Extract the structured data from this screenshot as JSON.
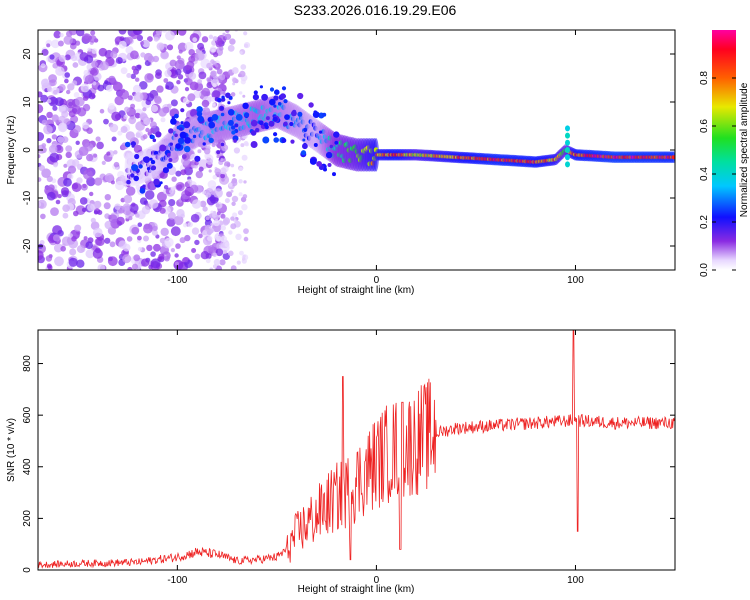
{
  "title": "S233.2026.016.19.29.E06",
  "chart_data": [
    {
      "type": "heatmap",
      "title": "S233.2026.016.19.29.E06",
      "xlabel": "Height of straight line (km)",
      "ylabel": "Frequency (Hz)",
      "xlim": [
        -170,
        150
      ],
      "ylim": [
        -25,
        25
      ],
      "xticks": [
        -100,
        0,
        100
      ],
      "yticks": [
        -20,
        -10,
        0,
        10,
        20
      ],
      "colorbar": {
        "label": "Normalized spectral amplitude",
        "range": [
          0,
          1
        ],
        "ticks": [
          0.0,
          0.2,
          0.4,
          0.6,
          0.8
        ]
      },
      "ridge": {
        "x": [
          -120,
          -110,
          -100,
          -90,
          -80,
          -70,
          -60,
          -50,
          -40,
          -30,
          -20,
          -10,
          0,
          10,
          20,
          40,
          60,
          80,
          90,
          95,
          100,
          120,
          150
        ],
        "freq": [
          -4,
          -2,
          2,
          4,
          5,
          6,
          7,
          8,
          6,
          3,
          0,
          -1,
          -1,
          -1,
          -1,
          -1.5,
          -2,
          -2.5,
          -2,
          0,
          -1,
          -1.5,
          -1.5
        ],
        "amplitude": [
          0.15,
          0.2,
          0.3,
          0.3,
          0.35,
          0.35,
          0.4,
          0.35,
          0.3,
          0.25,
          0.5,
          0.6,
          0.8,
          0.9,
          0.7,
          0.85,
          0.95,
          0.9,
          0.8,
          0.6,
          0.9,
          1.0,
          0.95
        ]
      }
    },
    {
      "type": "line",
      "xlabel": "Height of straight line (km)",
      "ylabel": "SNR (10 * v/v)",
      "xlim": [
        -170,
        150
      ],
      "ylim": [
        0,
        930
      ],
      "xticks": [
        -100,
        0,
        100
      ],
      "yticks": [
        0,
        200,
        400,
        600,
        800
      ],
      "color": "#ee2222",
      "trend": {
        "x": [
          -170,
          -150,
          -120,
          -100,
          -90,
          -80,
          -70,
          -60,
          -50,
          -45,
          -40,
          -35,
          -30,
          -25,
          -20,
          -15,
          -10,
          -5,
          0,
          5,
          10,
          15,
          20,
          25,
          30,
          40,
          60,
          80,
          100,
          120,
          150
        ],
        "snr": [
          20,
          25,
          30,
          50,
          70,
          60,
          35,
          40,
          50,
          80,
          140,
          180,
          210,
          250,
          280,
          300,
          340,
          380,
          420,
          450,
          470,
          480,
          500,
          520,
          530,
          550,
          560,
          570,
          580,
          570,
          570
        ]
      },
      "spikes": [
        {
          "x": -17,
          "snr": 750
        },
        {
          "x": -13,
          "snr": 40
        },
        {
          "x": 13,
          "snr": 650
        },
        {
          "x": 12,
          "snr": 80
        },
        {
          "x": 99,
          "snr": 930
        },
        {
          "x": 101,
          "snr": 150
        }
      ]
    }
  ]
}
